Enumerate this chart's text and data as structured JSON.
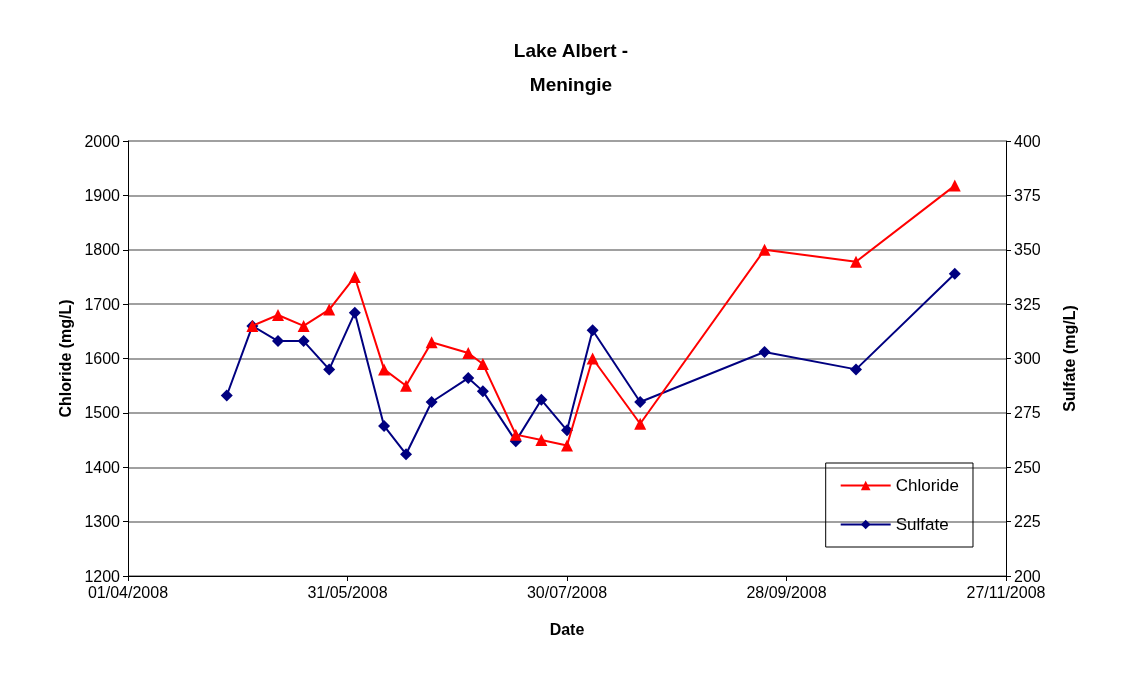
{
  "chart_data": {
    "type": "line",
    "title": "Lake Albert -\nMeningie",
    "xlabel": "Date",
    "ylabel": "Chloride (mg/L)",
    "y2label": "Sulfate (mg/L)",
    "x": [
      "2008-04-28",
      "2008-05-05",
      "2008-05-12",
      "2008-05-19",
      "2008-05-26",
      "2008-06-02",
      "2008-06-10",
      "2008-06-16",
      "2008-06-23",
      "2008-07-03",
      "2008-07-07",
      "2008-07-16",
      "2008-07-23",
      "2008-07-30",
      "2008-08-06",
      "2008-08-19",
      "2008-09-22",
      "2008-10-17",
      "2008-11-13"
    ],
    "series": [
      {
        "name": "Chloride",
        "color": "#ff0000",
        "marker": "triangle",
        "values": [
          null,
          1660,
          1680,
          1660,
          1690,
          1750,
          1580,
          1550,
          1630,
          1610,
          1590,
          1460,
          1450,
          1440,
          1600,
          1480,
          1800,
          1778,
          1918
        ]
      },
      {
        "name": "Sulfate",
        "color": "#000080",
        "marker": "diamond",
        "axis": "y2",
        "values": [
          283,
          315,
          308,
          308,
          295,
          321,
          269,
          256,
          280,
          291,
          285,
          262,
          281,
          267,
          313,
          280,
          303,
          295,
          339
        ]
      }
    ],
    "xlim": [
      "2008-04-01",
      "2008-11-27"
    ],
    "xticks": [
      {
        "value": "2008-04-01",
        "label": "01/04/2008"
      },
      {
        "value": "2008-05-31",
        "label": "31/05/2008"
      },
      {
        "value": "2008-07-30",
        "label": "30/07/2008"
      },
      {
        "value": "2008-09-28",
        "label": "28/09/2008"
      },
      {
        "value": "2008-11-27",
        "label": "27/11/2008"
      }
    ],
    "ylim": [
      1200,
      2000
    ],
    "yticks": [
      1200,
      1300,
      1400,
      1500,
      1600,
      1700,
      1800,
      1900,
      2000
    ],
    "y2lim": [
      200,
      400
    ],
    "y2ticks": [
      200,
      225,
      250,
      275,
      300,
      325,
      350,
      375,
      400
    ],
    "grid": "y",
    "legend": "bottom right",
    "line_style": "solid"
  }
}
